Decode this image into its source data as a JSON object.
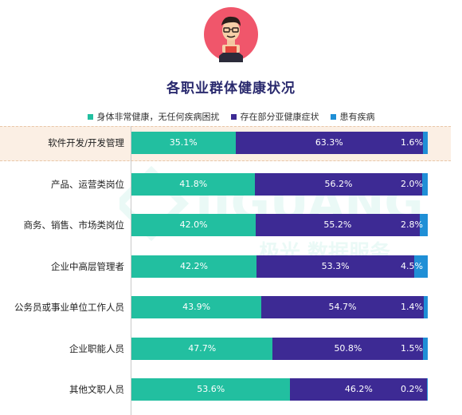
{
  "title": "各职业群体健康状况",
  "legend": [
    {
      "label": "身体非常健康，无任何疾病困扰",
      "color": "#22bfa0"
    },
    {
      "label": "存在部分亚健康症状",
      "color": "#3d2a94"
    },
    {
      "label": "患有疾病",
      "color": "#1f8fd6"
    }
  ],
  "chart_data": {
    "type": "bar",
    "stacked": true,
    "orientation": "horizontal",
    "categories": [
      "软件开发/开发管理",
      "产品、运营类岗位",
      "商务、销售、市场类岗位",
      "企业中高层管理者",
      "公务员或事业单位工作人员",
      "企业职能人员",
      "其他文职人员"
    ],
    "series": [
      {
        "name": "身体非常健康，无任何疾病困扰",
        "values": [
          35.1,
          41.8,
          42.0,
          42.2,
          43.9,
          47.7,
          53.6
        ]
      },
      {
        "name": "存在部分亚健康症状",
        "values": [
          63.3,
          56.2,
          55.2,
          53.3,
          54.7,
          50.8,
          46.2
        ]
      },
      {
        "name": "患有疾病",
        "values": [
          1.6,
          2.0,
          2.8,
          4.5,
          1.4,
          1.5,
          0.2
        ]
      }
    ],
    "value_labels": [
      [
        "35.1%",
        "63.3%",
        "1.6%"
      ],
      [
        "41.8%",
        "56.2%",
        "2.0%"
      ],
      [
        "42.0%",
        "55.2%",
        "2.8%"
      ],
      [
        "42.2%",
        "53.3%",
        "4.5%"
      ],
      [
        "43.9%",
        "54.7%",
        "1.4%"
      ],
      [
        "47.7%",
        "50.8%",
        "1.5%"
      ],
      [
        "53.6%",
        "46.2%",
        "0.2%"
      ]
    ],
    "highlighted_category": "软件开发/开发管理",
    "xlim": [
      0,
      100
    ],
    "legend_position": "top",
    "grid": false
  },
  "watermark": {
    "text": "JIGUANG",
    "subtext": "极光 数据服务"
  }
}
